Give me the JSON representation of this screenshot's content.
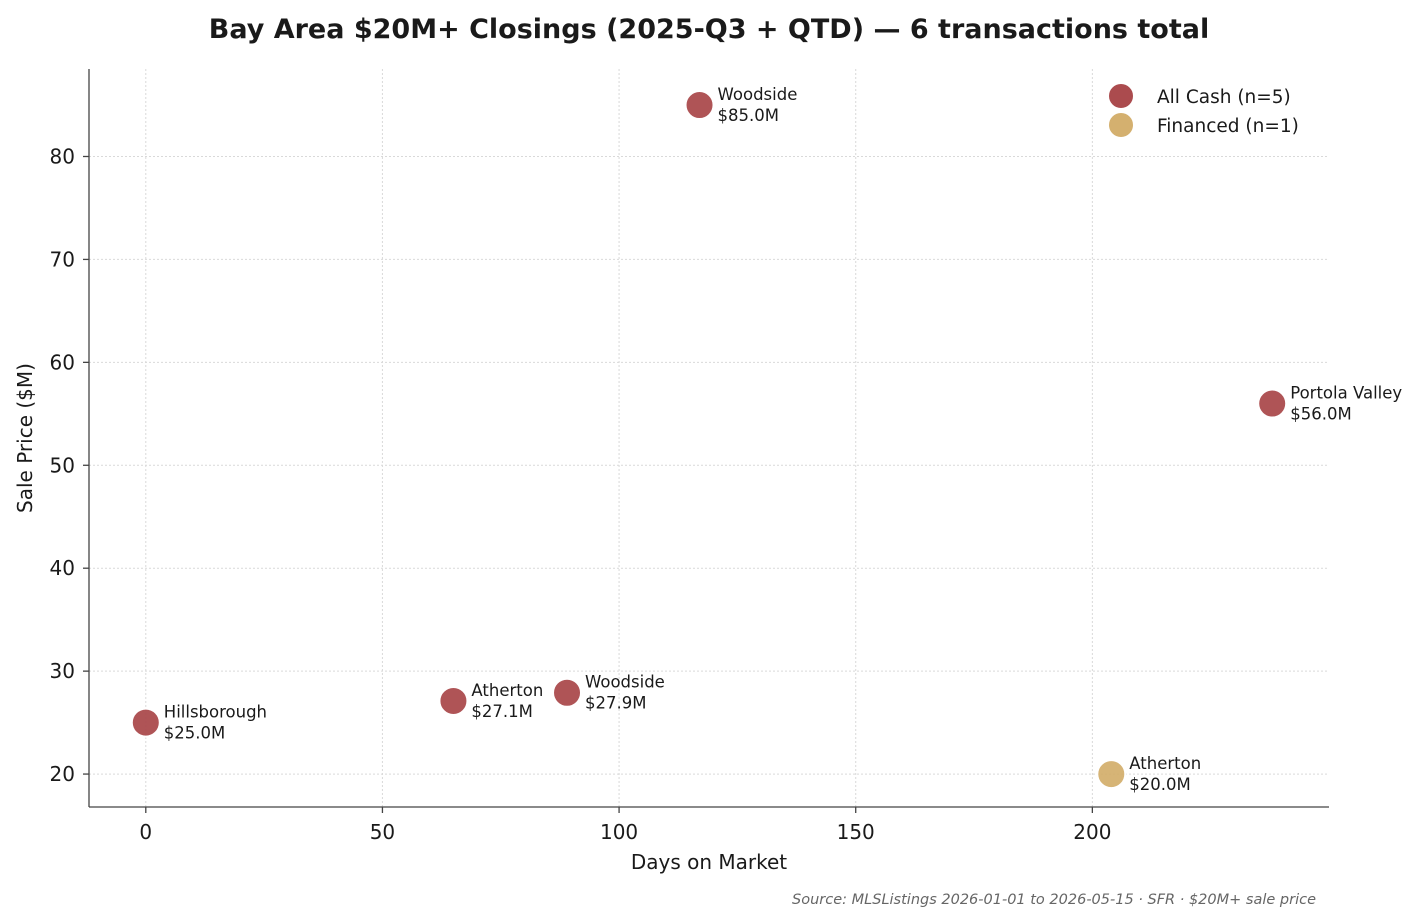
{
  "colors": {
    "all_cash": "#ab4b4e",
    "financed": "#d4b06f",
    "marker_edge": "#ffffff"
  },
  "chart_data": {
    "type": "scatter",
    "title": "Bay Area $20M+ Closings (2025-Q3 + QTD) — 6 transactions total",
    "xlabel": "Days on Market",
    "ylabel": "Sale Price ($M)",
    "xlim": [
      -12,
      250
    ],
    "ylim": [
      16.8,
      88.5
    ],
    "xticks": [
      0,
      50,
      100,
      150,
      200
    ],
    "yticks": [
      20,
      30,
      40,
      50,
      60,
      70,
      80
    ],
    "grid": true,
    "legend_position": "top-right",
    "source": "Source: MLSListings 2026-01-01 to 2026-05-15 · SFR · $20M+ sale price",
    "series": [
      {
        "name": "All Cash (n=5)",
        "color_key": "all_cash",
        "points": [
          {
            "x": 117,
            "y": 85.0,
            "city": "Woodside",
            "price_label": "$85.0M"
          },
          {
            "x": 238,
            "y": 56.0,
            "city": "Portola Valley",
            "price_label": "$56.0M"
          },
          {
            "x": 65,
            "y": 27.1,
            "city": "Atherton",
            "price_label": "$27.1M"
          },
          {
            "x": 89,
            "y": 27.9,
            "city": "Woodside",
            "price_label": "$27.9M"
          },
          {
            "x": 0,
            "y": 25.0,
            "city": "Hillsborough",
            "price_label": "$25.0M"
          }
        ]
      },
      {
        "name": "Financed (n=1)",
        "color_key": "financed",
        "points": [
          {
            "x": 204,
            "y": 20.0,
            "city": "Atherton",
            "price_label": "$20.0M"
          }
        ]
      }
    ]
  }
}
